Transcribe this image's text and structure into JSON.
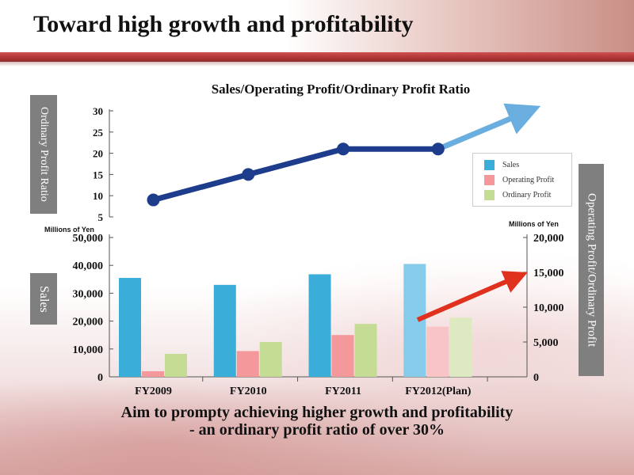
{
  "slide_title": "Toward high growth and profitability",
  "conclusion": {
    "line1": "Aim to prompty achieving higher growth and profitability",
    "line2": "- an ordinary profit ratio of over 30%"
  },
  "side_labels": {
    "ratio_axis": "Ordinary Profit Ratio",
    "sales_axis": "Sales",
    "profit_axis": "Operating Profit/Ordinary Profit"
  },
  "units": {
    "left": "Millions of Yen",
    "right": "Millions of Yen"
  },
  "colors": {
    "sales": "#3badd9",
    "sales_plan": "#87cbea",
    "operating": "#f4989c",
    "operating_plan": "#f9c4c6",
    "ordinary": "#c5dc95",
    "ordinary_plan": "#dde9c0",
    "ratio_line": "#1e3c8c",
    "ratio_arrow": "#6aaee0",
    "trend_arrow": "#e0301e"
  },
  "chart_data": [
    {
      "type": "line",
      "title": "Sales/Operating Profit/Ordinary Profit Ratio",
      "ylabel": "Ordinary Profit Ratio",
      "yticks": [
        5,
        10,
        15,
        20,
        25,
        30
      ],
      "ylim": [
        5,
        30
      ],
      "categories": [
        "FY2009",
        "FY2010",
        "FY2011",
        "FY2012(Plan)"
      ],
      "series": [
        {
          "name": "Ordinary Profit Ratio",
          "values": [
            9,
            15,
            21,
            21
          ]
        }
      ],
      "annotations": [
        "arrow continuing upward after FY2012(Plan)"
      ]
    },
    {
      "type": "bar",
      "categories": [
        "FY2009",
        "FY2010",
        "FY2011",
        "FY2012(Plan)"
      ],
      "left_axis": {
        "label": "Sales",
        "unit": "Millions of Yen",
        "ylim": [
          0,
          50000
        ],
        "ticks": [
          "0",
          "10,000",
          "20,000",
          "30,000",
          "40,000",
          "50,000"
        ]
      },
      "right_axis": {
        "label": "Operating Profit/Ordinary Profit",
        "unit": "Millions of Yen",
        "ylim": [
          0,
          20000
        ],
        "ticks": [
          "0",
          "5,000",
          "10,000",
          "15,000",
          "20,000"
        ]
      },
      "series": [
        {
          "name": "Sales",
          "axis": "left",
          "values": [
            35500,
            33000,
            36800,
            40500
          ]
        },
        {
          "name": "Operating Profit",
          "axis": "right",
          "values": [
            800,
            3700,
            6000,
            7200
          ]
        },
        {
          "name": "Ordinary Profit",
          "axis": "right",
          "values": [
            3300,
            5000,
            7600,
            8500
          ]
        }
      ],
      "legend": [
        "Sales",
        "Operating Profit",
        "Ordinary Profit"
      ],
      "legend_position": "right",
      "annotations": [
        "red arrow indicating upward trend"
      ]
    }
  ]
}
